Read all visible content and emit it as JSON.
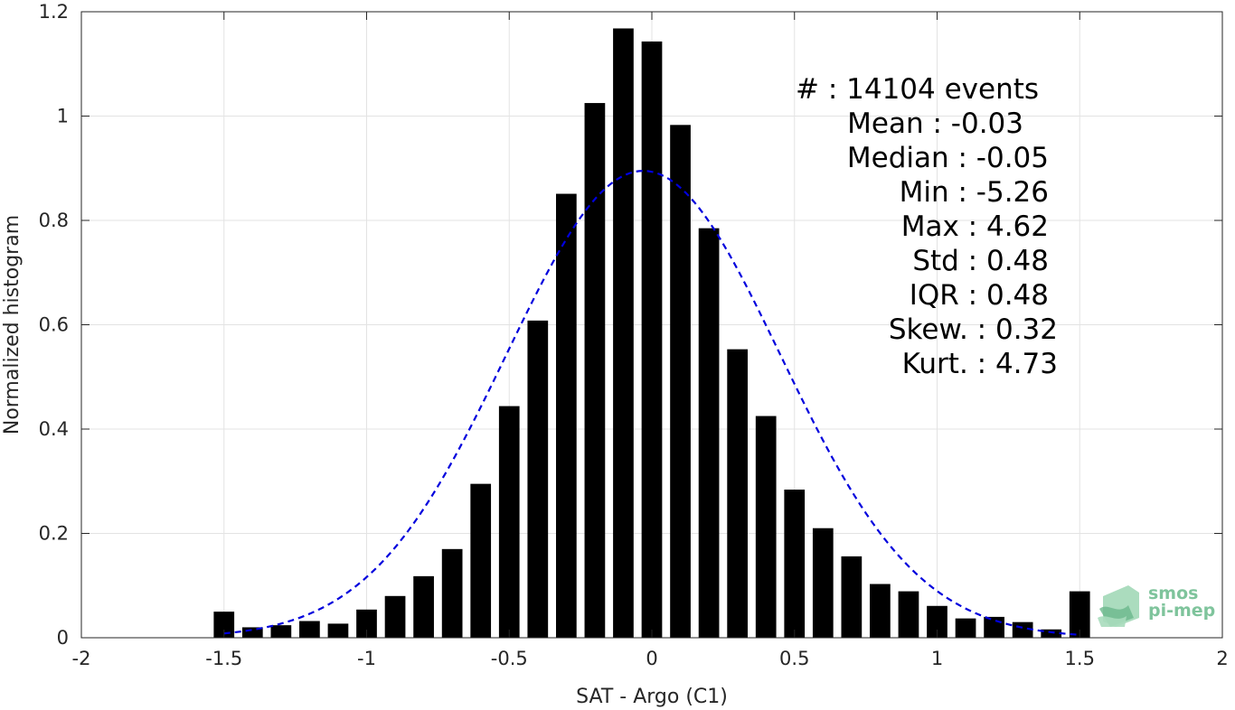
{
  "chart_data": {
    "type": "bar",
    "xlabel": "SAT - Argo (C1)",
    "ylabel": "Normalized histogram",
    "xlim": [
      -2,
      2
    ],
    "ylim": [
      0,
      1.2
    ],
    "xticks": [
      -2,
      -1.5,
      -1,
      -0.5,
      0,
      0.5,
      1,
      1.5,
      2
    ],
    "xtick_labels": [
      "-2",
      "-1.5",
      "-1",
      "-0.5",
      "0",
      "0.5",
      "1",
      "1.5",
      "2"
    ],
    "yticks": [
      0,
      0.2,
      0.4,
      0.6,
      0.8,
      1,
      1.2
    ],
    "ytick_labels": [
      "0",
      "0.2",
      "0.4",
      "0.6",
      "0.8",
      "1",
      "1.2"
    ],
    "grid": true,
    "bar_color": "#000000",
    "bar_width": 0.072,
    "bins": {
      "x": [
        -1.5,
        -1.4,
        -1.3,
        -1.2,
        -1.1,
        -1.0,
        -0.9,
        -0.8,
        -0.7,
        -0.6,
        -0.5,
        -0.4,
        -0.3,
        -0.2,
        -0.1,
        0.0,
        0.1,
        0.2,
        0.3,
        0.4,
        0.5,
        0.6,
        0.7,
        0.8,
        0.9,
        1.0,
        1.1,
        1.2,
        1.3,
        1.4,
        1.5
      ],
      "values": [
        0.05,
        0.02,
        0.024,
        0.032,
        0.027,
        0.054,
        0.08,
        0.118,
        0.17,
        0.295,
        0.444,
        0.608,
        0.851,
        1.025,
        1.168,
        1.143,
        0.983,
        0.785,
        0.553,
        0.425,
        0.284,
        0.21,
        0.156,
        0.103,
        0.089,
        0.061,
        0.037,
        0.04,
        0.03,
        0.016,
        0.089
      ]
    },
    "fit": {
      "type": "gaussian",
      "style": "dashed",
      "color": "#0000dd",
      "mean": -0.03,
      "std": 0.48,
      "peak": 0.895,
      "x_range": [
        -1.5,
        1.5
      ]
    },
    "annotation": [
      "#  : 14104 events",
      "Mean : -0.03",
      "Median : -0.05",
      "Min : -5.26",
      "Max : 4.62",
      "Std : 0.48",
      "IQR : 0.48",
      "Skew. : 0.32",
      "Kurt. : 4.73"
    ]
  },
  "logo": {
    "line1": "smos",
    "line2": "pi-mep",
    "color": "#7fc49c"
  }
}
